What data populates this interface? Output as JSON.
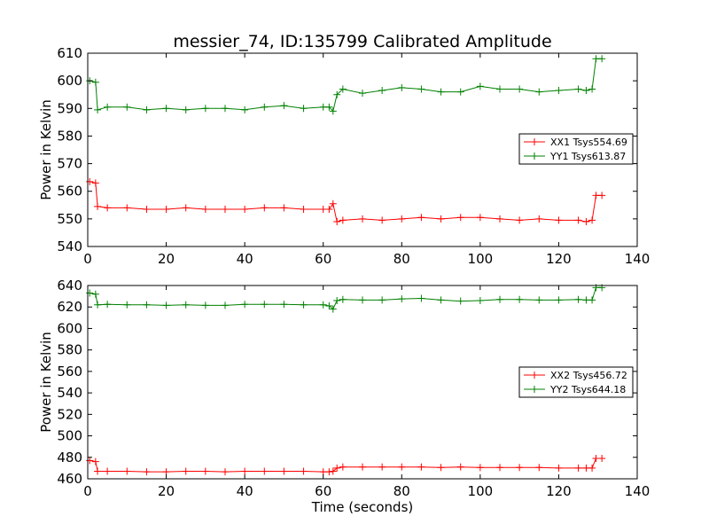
{
  "colors": {
    "xx": "#ff0000",
    "yy": "#008000",
    "axes": "#000000",
    "background": "#ffffff"
  },
  "chart_data": [
    {
      "type": "line",
      "title": "messier_74, ID:135799 Calibrated Amplitude",
      "xlabel": "",
      "ylabel": "Power in Kelvin",
      "xlim": [
        0,
        140
      ],
      "ylim": [
        540,
        610
      ],
      "xticks": [
        0,
        20,
        40,
        60,
        80,
        100,
        120,
        140
      ],
      "yticks": [
        540,
        550,
        560,
        570,
        580,
        590,
        600,
        610
      ],
      "grid": false,
      "legend_position": "center-right",
      "series": [
        {
          "name": "XX1 Tsys554.69",
          "color": "#ff0000",
          "marker": "+",
          "x": [
            0.5,
            2,
            2.5,
            5,
            10,
            15,
            20,
            25,
            30,
            35,
            40,
            45,
            50,
            55,
            60,
            61.5,
            62.5,
            63.5,
            65,
            70,
            75,
            80,
            85,
            90,
            95,
            100,
            105,
            110,
            115,
            120,
            125,
            127,
            128.5,
            129.5,
            131
          ],
          "y": [
            563.5,
            563,
            554.5,
            554,
            554,
            553.5,
            553.5,
            554,
            553.5,
            553.5,
            553.5,
            554,
            554,
            553.5,
            553.5,
            553.5,
            555.5,
            549,
            549.5,
            550,
            549.5,
            550,
            550.5,
            550,
            550.5,
            550.5,
            550,
            549.5,
            550,
            549.5,
            549.5,
            549,
            549.5,
            558.5,
            558.5
          ]
        },
        {
          "name": "YY1 Tsys613.87",
          "color": "#008000",
          "marker": "+",
          "x": [
            0.5,
            2,
            2.5,
            5,
            10,
            15,
            20,
            25,
            30,
            35,
            40,
            45,
            50,
            55,
            60,
            61.5,
            62.5,
            63.5,
            65,
            70,
            75,
            80,
            85,
            90,
            95,
            100,
            105,
            110,
            115,
            120,
            125,
            127,
            128.5,
            129.5,
            131
          ],
          "y": [
            600,
            599.5,
            589.5,
            590.5,
            590.5,
            589.5,
            590,
            589.5,
            590,
            590,
            589.5,
            590.5,
            591,
            590,
            590.5,
            590.5,
            589,
            595,
            597,
            595.5,
            596.5,
            597.5,
            597,
            596,
            596,
            598,
            597,
            597,
            596,
            596.5,
            597,
            596.5,
            597,
            608,
            608
          ]
        }
      ]
    },
    {
      "type": "line",
      "title": "",
      "xlabel": "Time (seconds)",
      "ylabel": "Power in Kelvin",
      "xlim": [
        0,
        140
      ],
      "ylim": [
        460,
        640
      ],
      "xticks": [
        0,
        20,
        40,
        60,
        80,
        100,
        120,
        140
      ],
      "yticks": [
        460,
        480,
        500,
        520,
        540,
        560,
        580,
        600,
        620,
        640
      ],
      "grid": false,
      "legend_position": "center-right",
      "series": [
        {
          "name": "XX2 Tsys456.72",
          "color": "#ff0000",
          "marker": "+",
          "x": [
            0.5,
            2,
            2.5,
            5,
            10,
            15,
            20,
            25,
            30,
            35,
            40,
            45,
            50,
            55,
            60,
            61.5,
            62.5,
            63.5,
            65,
            70,
            75,
            80,
            85,
            90,
            95,
            100,
            105,
            110,
            115,
            120,
            125,
            127,
            128.5,
            129.5,
            131
          ],
          "y": [
            477,
            476,
            467,
            467,
            467,
            466.5,
            466.5,
            467,
            467,
            466.5,
            467,
            467,
            467,
            467,
            466.5,
            466.5,
            467,
            470,
            471,
            471,
            471,
            471,
            471,
            470.5,
            471,
            470.5,
            470.5,
            470.5,
            470.5,
            470,
            470,
            470,
            470,
            479,
            479
          ]
        },
        {
          "name": "YY2 Tsys644.18",
          "color": "#008000",
          "marker": "+",
          "x": [
            0.5,
            2,
            2.5,
            5,
            10,
            15,
            20,
            25,
            30,
            35,
            40,
            45,
            50,
            55,
            60,
            61.5,
            62.5,
            63.5,
            65,
            70,
            75,
            80,
            85,
            90,
            95,
            100,
            105,
            110,
            115,
            120,
            125,
            127,
            128.5,
            129.5,
            131
          ],
          "y": [
            633,
            632,
            622,
            622.5,
            622,
            622,
            621.5,
            622,
            621.5,
            621.5,
            622.5,
            622.5,
            622.5,
            622,
            622,
            621,
            618,
            626,
            627,
            626.5,
            626.5,
            627.5,
            628,
            626.5,
            625.5,
            626,
            627,
            627,
            626.5,
            626.5,
            627,
            626.5,
            626.5,
            638,
            638
          ]
        }
      ]
    }
  ]
}
